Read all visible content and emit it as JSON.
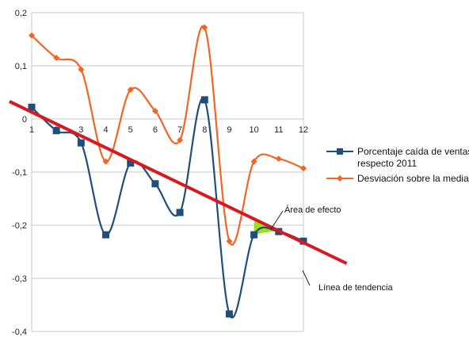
{
  "chart_data": {
    "type": "line",
    "x": [
      1,
      2,
      3,
      4,
      5,
      6,
      7,
      8,
      9,
      10,
      11,
      12
    ],
    "xlim": [
      1,
      12
    ],
    "ylim": [
      -0.4,
      0.2
    ],
    "yticks": [
      "0,2",
      "0,1",
      "0",
      "-0,1",
      "-0,2",
      "-0,3",
      "-0,4"
    ],
    "ytick_values": [
      0.2,
      0.1,
      0,
      -0.1,
      -0.2,
      -0.3,
      -0.4
    ],
    "xticks": [
      "1",
      "2",
      "3",
      "4",
      "5",
      "6",
      "7",
      "8",
      "9",
      "10",
      "11",
      "12"
    ],
    "grid": "horizontal",
    "legend_position": "right",
    "series": [
      {
        "name_line1": "Porcentaje caída de ventas",
        "name_line2": "respecto 2011",
        "color": "#1f4e79",
        "marker": "square",
        "values": [
          0.022,
          -0.022,
          -0.045,
          -0.218,
          -0.083,
          -0.122,
          -0.176,
          0.036,
          -0.367,
          -0.218,
          -0.212,
          -0.23
        ]
      },
      {
        "name": "Desviación sobre la media",
        "color": "#f26522",
        "marker": "diamond",
        "values": [
          0.157,
          0.115,
          0.093,
          -0.08,
          0.055,
          0.015,
          -0.04,
          0.172,
          -0.23,
          -0.08,
          -0.075,
          -0.093
        ]
      }
    ],
    "trendline": {
      "label": "Línea de tendencia",
      "color": "#d71920",
      "start": [
        0.1,
        0.033
      ],
      "end": [
        13.75,
        -0.272
      ]
    },
    "effect_area": {
      "label": "Área de efecto",
      "color": "#9ce017"
    }
  }
}
